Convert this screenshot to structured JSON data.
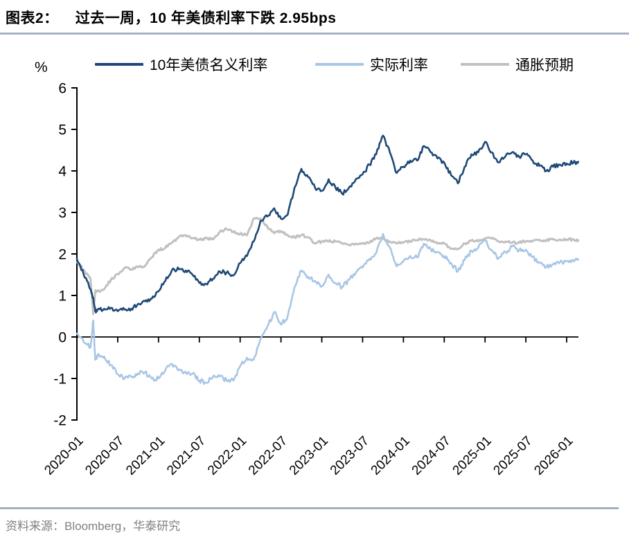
{
  "header": {
    "tag": "图表2：",
    "title": "过去一周，10 年美债利率下跌 2.95bps"
  },
  "axis_unit": "%",
  "source": "资料来源：Bloomberg，华泰研究",
  "legend": [
    {
      "label": "10年美债名义利率",
      "color": "#1d4877"
    },
    {
      "label": "实际利率",
      "color": "#a7c6e6"
    },
    {
      "label": "通胀预期",
      "color": "#c0c0c0"
    }
  ],
  "colors": {
    "nominal": "#1d4877",
    "real": "#a7c6e6",
    "breakeven": "#c0c0c0",
    "title_rule": "#a3b2c8",
    "footer_rule": "#9fb0c4",
    "axis": "#000000",
    "source_text": "#808080"
  },
  "chart_data": {
    "type": "line",
    "title": "过去一周，10 年美债利率下跌 2.95bps",
    "ylabel": "%",
    "ylim": [
      -2,
      6
    ],
    "yticks": [
      6,
      5,
      4,
      3,
      2,
      1,
      0,
      -1,
      -2
    ],
    "grid": false,
    "legend_position": "top",
    "x_unit": "months since 2020-01",
    "xticks": [
      {
        "m": 0,
        "label": "2020-01"
      },
      {
        "m": 6,
        "label": "2020-07"
      },
      {
        "m": 12,
        "label": "2021-01"
      },
      {
        "m": 18,
        "label": "2021-07"
      },
      {
        "m": 24,
        "label": "2022-01"
      },
      {
        "m": 30,
        "label": "2022-07"
      },
      {
        "m": 36,
        "label": "2023-01"
      },
      {
        "m": 42,
        "label": "2023-07"
      },
      {
        "m": 48,
        "label": "2024-01"
      },
      {
        "m": 54,
        "label": "2024-07"
      },
      {
        "m": 60,
        "label": "2025-01"
      },
      {
        "m": 66,
        "label": "2025-07"
      },
      {
        "m": 72,
        "label": "2026-01"
      }
    ],
    "x": [
      0,
      1,
      2,
      2.4,
      2.7,
      3,
      4,
      5,
      6,
      7,
      8,
      9,
      10,
      11,
      12,
      13,
      14,
      15,
      16,
      17,
      18,
      19,
      20,
      21,
      22,
      23,
      24,
      25,
      26,
      27,
      28,
      29,
      30,
      31,
      32,
      33,
      34,
      35,
      36,
      37,
      38,
      39,
      40,
      41,
      42,
      43,
      44,
      45,
      46,
      47,
      48,
      49,
      50,
      51,
      52,
      53,
      54,
      55,
      56,
      57,
      58,
      59,
      60,
      61,
      62,
      63,
      64,
      65,
      66,
      67,
      68,
      69,
      70,
      71,
      72,
      73,
      73.7
    ],
    "series": [
      {
        "name": "10年美债名义利率",
        "color": "#1d4877",
        "width": 2.6,
        "jitter": 0.05,
        "values": [
          1.88,
          1.5,
          1.15,
          0.95,
          0.62,
          0.65,
          0.68,
          0.7,
          0.62,
          0.66,
          0.68,
          0.8,
          0.86,
          0.92,
          1.1,
          1.35,
          1.62,
          1.63,
          1.6,
          1.5,
          1.3,
          1.28,
          1.4,
          1.58,
          1.55,
          1.48,
          1.78,
          1.95,
          2.3,
          2.8,
          2.9,
          3.1,
          2.85,
          2.95,
          3.6,
          4.05,
          3.85,
          3.6,
          3.52,
          3.8,
          3.6,
          3.45,
          3.6,
          3.8,
          3.92,
          4.15,
          4.4,
          4.85,
          4.45,
          3.95,
          4.1,
          4.25,
          4.25,
          4.6,
          4.45,
          4.3,
          4.2,
          3.9,
          3.7,
          4.1,
          4.4,
          4.45,
          4.7,
          4.45,
          4.2,
          4.35,
          4.45,
          4.35,
          4.4,
          4.25,
          4.12,
          4.0,
          4.1,
          4.15,
          4.18,
          4.2,
          4.22
        ]
      },
      {
        "name": "实际利率",
        "color": "#a7c6e6",
        "width": 2.6,
        "jitter": 0.055,
        "values": [
          0.08,
          -0.12,
          -0.25,
          0.4,
          -0.55,
          -0.45,
          -0.47,
          -0.68,
          -0.9,
          -1.0,
          -0.95,
          -0.88,
          -0.85,
          -1.0,
          -1.0,
          -0.8,
          -0.65,
          -0.78,
          -0.85,
          -0.88,
          -1.05,
          -1.1,
          -0.95,
          -0.95,
          -1.05,
          -1.05,
          -0.7,
          -0.5,
          -0.55,
          -0.05,
          0.25,
          0.6,
          0.3,
          0.5,
          1.2,
          1.6,
          1.45,
          1.35,
          1.22,
          1.5,
          1.3,
          1.2,
          1.38,
          1.55,
          1.67,
          1.88,
          2.02,
          2.48,
          2.15,
          1.7,
          1.82,
          1.95,
          1.92,
          2.25,
          2.12,
          2.05,
          1.95,
          1.78,
          1.58,
          1.85,
          2.08,
          2.15,
          2.32,
          2.08,
          1.9,
          2.05,
          2.18,
          2.08,
          2.1,
          1.93,
          1.78,
          1.68,
          1.75,
          1.8,
          1.83,
          1.85,
          1.87
        ]
      },
      {
        "name": "通胀预期",
        "color": "#c0c0c0",
        "width": 3,
        "jitter": 0.032,
        "values": [
          1.8,
          1.62,
          1.4,
          0.55,
          1.1,
          1.1,
          1.15,
          1.38,
          1.52,
          1.66,
          1.63,
          1.68,
          1.71,
          1.92,
          2.1,
          2.15,
          2.27,
          2.41,
          2.45,
          2.38,
          2.35,
          2.38,
          2.35,
          2.53,
          2.6,
          2.53,
          2.48,
          2.45,
          2.85,
          2.85,
          2.65,
          2.5,
          2.55,
          2.45,
          2.4,
          2.45,
          2.4,
          2.25,
          2.3,
          2.3,
          2.3,
          2.25,
          2.22,
          2.25,
          2.25,
          2.27,
          2.38,
          2.37,
          2.3,
          2.25,
          2.28,
          2.3,
          2.33,
          2.35,
          2.33,
          2.25,
          2.25,
          2.12,
          2.12,
          2.25,
          2.32,
          2.3,
          2.38,
          2.37,
          2.3,
          2.3,
          2.27,
          2.27,
          2.3,
          2.32,
          2.34,
          2.32,
          2.35,
          2.35,
          2.35,
          2.35,
          2.33
        ]
      }
    ]
  }
}
